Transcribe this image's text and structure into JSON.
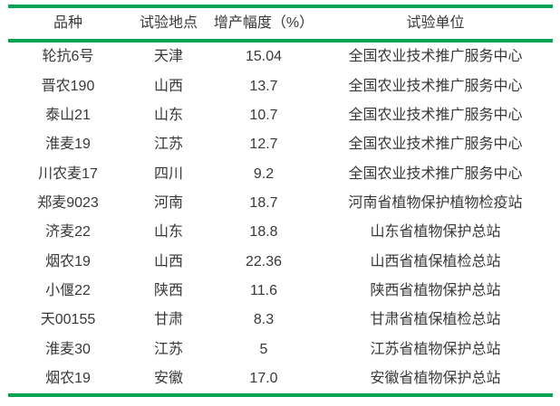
{
  "chart_data": {
    "type": "table",
    "columns": [
      "品种",
      "试验地点",
      "增产幅度（%）",
      "试验单位"
    ],
    "rows": [
      [
        "轮抗6号",
        "天津",
        "15.04",
        "全国农业技术推广服务中心"
      ],
      [
        "晋农190",
        "山西",
        "13.7",
        "全国农业技术推广服务中心"
      ],
      [
        "泰山21",
        "山东",
        "10.7",
        "全国农业技术推广服务中心"
      ],
      [
        "淮麦19",
        "江苏",
        "12.7",
        "全国农业技术推广服务中心"
      ],
      [
        "川农麦17",
        "四川",
        "9.2",
        "全国农业技术推广服务中心"
      ],
      [
        "郑麦9023",
        "河南",
        "18.7",
        "河南省植物保护植物检疫站"
      ],
      [
        "济麦22",
        "山东",
        "18.8",
        "山东省植物保护总站"
      ],
      [
        "烟农19",
        "山西",
        "22.36",
        "山西省植保植检总站"
      ],
      [
        "小偃22",
        "陕西",
        "11.6",
        "陕西省植物保护总站"
      ],
      [
        "天00155",
        "甘肃",
        "8.3",
        "甘肃省植保植检总站"
      ],
      [
        "淮麦30",
        "江苏",
        "5",
        "江苏省植物保护总站"
      ],
      [
        "烟农19",
        "安徽",
        "17.0",
        "安徽省植物保护总站"
      ]
    ],
    "layout": {
      "grid": "horizontal rules only (top, below header, bottom)",
      "alignment": "all columns centered"
    }
  },
  "colors": {
    "rule_green": "#00a651",
    "text": "#383838",
    "background": "#ffffff"
  }
}
